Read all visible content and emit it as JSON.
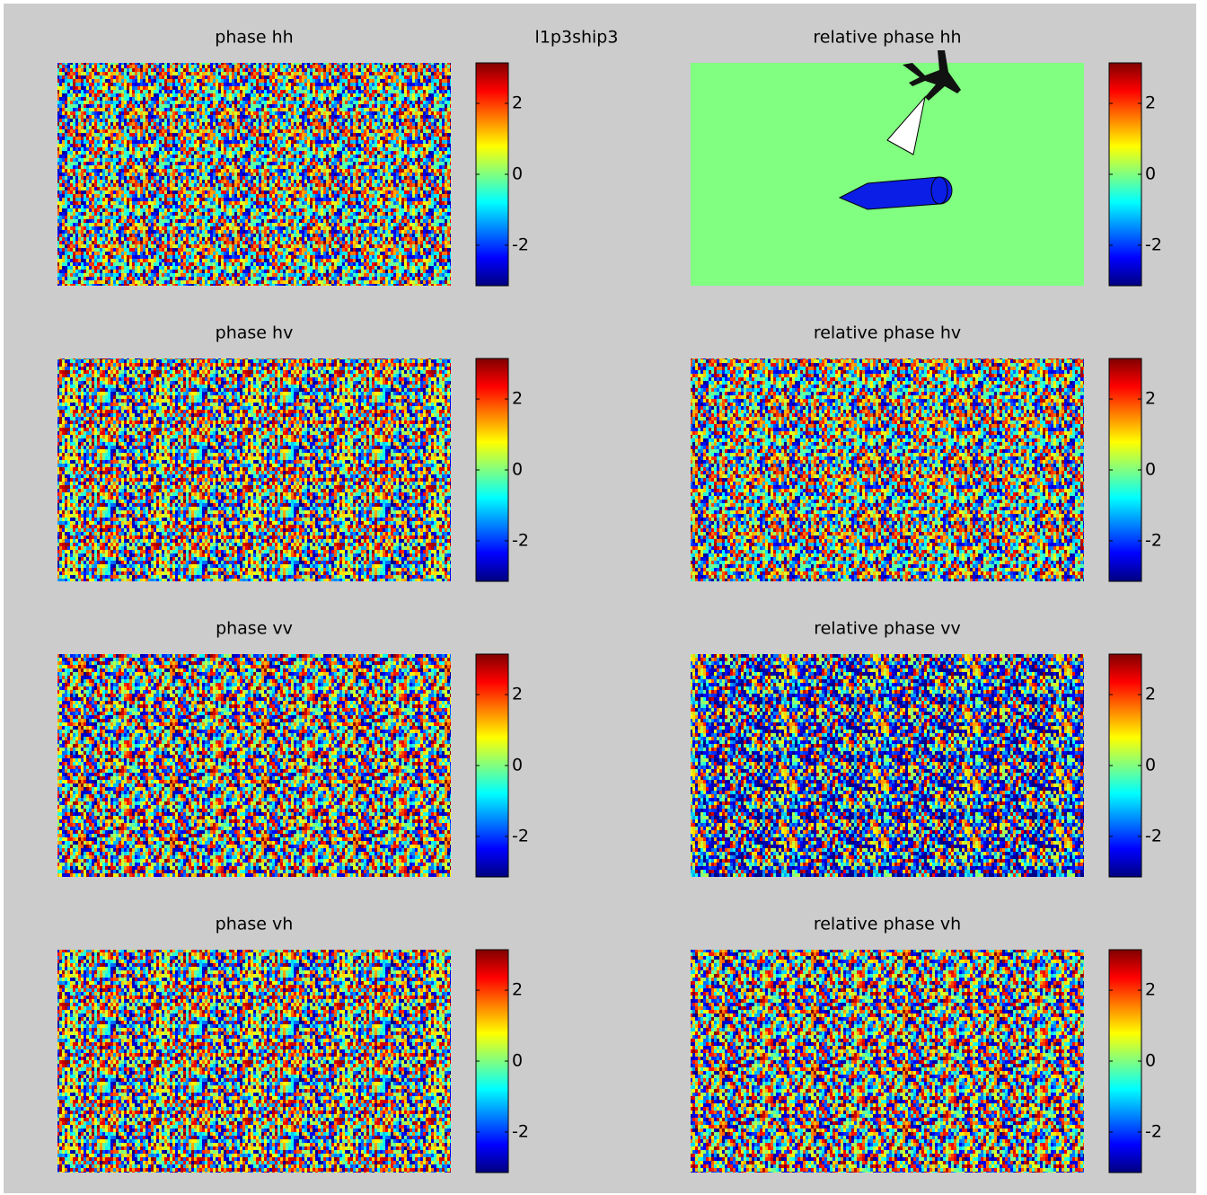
{
  "title": "l1p3ship3",
  "chart_data": [
    {
      "type": "heatmap",
      "title": "phase hh",
      "clim": [
        -3.1416,
        3.1416
      ],
      "cticks": [
        -2,
        0,
        2
      ]
    },
    {
      "type": "heatmap",
      "title": "relative phase hh",
      "clim": [
        -3.1416,
        3.1416
      ],
      "cticks": [
        -2,
        0,
        2
      ]
    },
    {
      "type": "heatmap",
      "title": "phase hv",
      "clim": [
        -3.1416,
        3.1416
      ],
      "cticks": [
        -2,
        0,
        2
      ]
    },
    {
      "type": "heatmap",
      "title": "relative phase hv",
      "clim": [
        -3.1416,
        3.1416
      ],
      "cticks": [
        -2,
        0,
        2
      ]
    },
    {
      "type": "heatmap",
      "title": "phase vv",
      "clim": [
        -3.1416,
        3.1416
      ],
      "cticks": [
        -2,
        0,
        2
      ]
    },
    {
      "type": "heatmap",
      "title": "relative phase vv",
      "clim": [
        -3.1416,
        3.1416
      ],
      "cticks": [
        -2,
        0,
        2
      ]
    },
    {
      "type": "heatmap",
      "title": "phase vh",
      "clim": [
        -3.1416,
        3.1416
      ],
      "cticks": [
        -2,
        0,
        2
      ]
    },
    {
      "type": "heatmap",
      "title": "relative phase vh",
      "clim": [
        -3.1416,
        3.1416
      ],
      "cticks": [
        -2,
        0,
        2
      ]
    }
  ]
}
